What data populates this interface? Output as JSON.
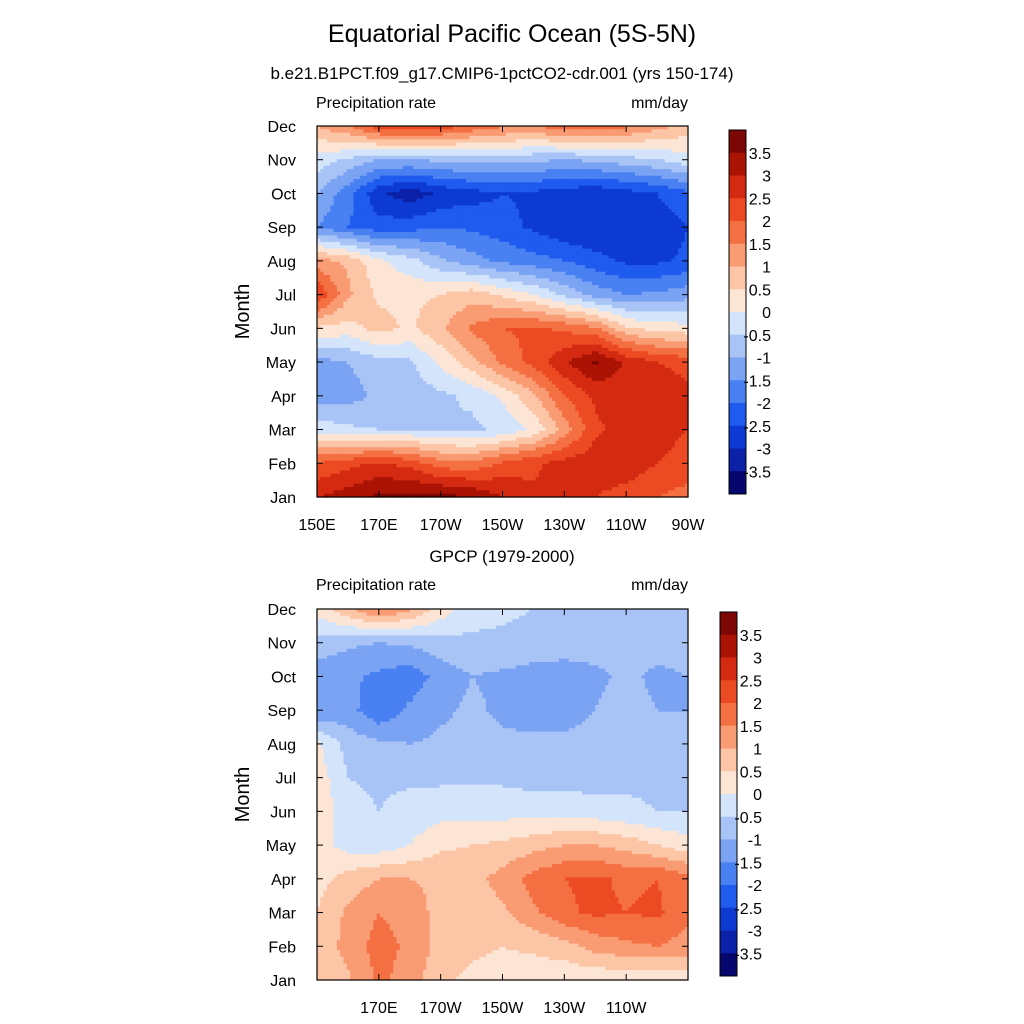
{
  "title": "Equatorial Pacific Ocean (5S-5N)",
  "chart_data": [
    {
      "type": "heatmap",
      "panel_title": "b.e21.B1PCT.f09_g17.CMIP6-1pctCO2-cdr.001 (yrs 150-174)",
      "left_label": "Precipitation rate",
      "right_label": "mm/day",
      "ylabel": "Month",
      "xlabel": "",
      "x_ticks": [
        "150E",
        "170E",
        "170W",
        "150W",
        "130W",
        "110W",
        "90W"
      ],
      "y_ticks": [
        "Jan",
        "Feb",
        "Mar",
        "Apr",
        "May",
        "Jun",
        "Jul",
        "Aug",
        "Sep",
        "Oct",
        "Nov",
        "Dec"
      ],
      "xlim": [
        "150E",
        "90W"
      ],
      "ylim": [
        "Jan",
        "Dec"
      ],
      "colorbar_labels": [
        "3.5",
        "3",
        "2.5",
        "2",
        "1.5",
        "1",
        "0.5",
        "0",
        "-0.5",
        "-1",
        "-1.5",
        "-2",
        "-2.5",
        "-3",
        "-3.5"
      ],
      "grid_columns": [
        "150E",
        "160E",
        "170E",
        "180",
        "170W",
        "160W",
        "150W",
        "140W",
        "130W",
        "120W",
        "110W",
        "100W",
        "90W"
      ],
      "values": [
        [
          3.0,
          3.3,
          3.6,
          3.7,
          3.7,
          3.5,
          3.0,
          2.6,
          2.6,
          2.5,
          2.3,
          2.0,
          1.8
        ],
        [
          2.0,
          2.3,
          2.6,
          2.3,
          1.7,
          1.6,
          2.1,
          2.4,
          2.7,
          2.8,
          2.8,
          2.5,
          2.3
        ],
        [
          -0.2,
          -0.4,
          -0.5,
          -0.5,
          -0.5,
          -0.6,
          -0.4,
          0.1,
          1.2,
          2.4,
          2.7,
          2.7,
          2.5
        ],
        [
          -1.3,
          -1.2,
          -0.9,
          -0.8,
          -0.6,
          -0.4,
          0.1,
          0.9,
          2.0,
          2.6,
          2.8,
          3.0,
          2.6
        ],
        [
          -1.2,
          -1.0,
          -0.7,
          -0.6,
          0.1,
          0.8,
          1.6,
          2.2,
          2.9,
          3.6,
          2.9,
          2.5,
          2.3
        ],
        [
          0.4,
          0.3,
          0.7,
          0.4,
          0.9,
          1.6,
          2.0,
          2.1,
          1.9,
          1.6,
          0.6,
          0.3,
          0.2
        ],
        [
          2.5,
          1.1,
          0.4,
          0.4,
          0.5,
          0.8,
          0.4,
          0.0,
          -0.6,
          -1.2,
          -1.5,
          -1.4,
          -1.2
        ],
        [
          1.2,
          0.9,
          0.1,
          -0.3,
          -0.9,
          -1.3,
          -1.6,
          -1.8,
          -2.0,
          -2.3,
          -2.6,
          -2.6,
          -2.4
        ],
        [
          -1.5,
          -2.0,
          -2.3,
          -2.2,
          -2.0,
          -2.1,
          -2.3,
          -2.6,
          -2.9,
          -3.0,
          -3.0,
          -2.8,
          -2.5
        ],
        [
          -1.0,
          -1.8,
          -2.9,
          -3.3,
          -2.9,
          -2.7,
          -2.5,
          -2.6,
          -2.8,
          -2.9,
          -2.7,
          -2.5,
          -2.1
        ],
        [
          -0.2,
          -0.6,
          -1.0,
          -1.0,
          -0.9,
          -0.8,
          -0.8,
          -0.9,
          -1.0,
          -0.9,
          -0.7,
          -0.5,
          -0.2
        ],
        [
          1.0,
          1.5,
          2.3,
          2.5,
          2.3,
          1.9,
          1.6,
          1.5,
          1.8,
          1.9,
          1.6,
          1.2,
          0.8
        ]
      ]
    },
    {
      "type": "heatmap",
      "panel_title": "GPCP (1979-2000)",
      "left_label": "Precipitation rate",
      "right_label": "mm/day",
      "ylabel": "Month",
      "xlabel": "",
      "x_ticks": [
        "170E",
        "170W",
        "150W",
        "130W",
        "110W"
      ],
      "y_ticks": [
        "Jan",
        "Feb",
        "Mar",
        "Apr",
        "May",
        "Jun",
        "Jul",
        "Aug",
        "Sep",
        "Oct",
        "Nov",
        "Dec"
      ],
      "xlim": [
        "150E",
        "90W"
      ],
      "ylim": [
        "Jan",
        "Dec"
      ],
      "colorbar_labels": [
        "3.5",
        "3",
        "2.5",
        "2",
        "1.5",
        "1",
        "0.5",
        "0",
        "-0.5",
        "-1",
        "-1.5",
        "-2",
        "-2.5",
        "-3",
        "-3.5"
      ],
      "grid_columns": [
        "150E",
        "160E",
        "170E",
        "180",
        "170W",
        "160W",
        "150W",
        "140W",
        "130W",
        "120W",
        "110W",
        "100W",
        "90W"
      ],
      "values": [
        [
          0.5,
          0.9,
          1.6,
          1.3,
          0.6,
          0.4,
          0.3,
          0.2,
          0.1,
          0.1,
          0.1,
          0.1,
          0.2
        ],
        [
          0.6,
          1.2,
          1.7,
          1.4,
          0.8,
          0.6,
          0.5,
          0.6,
          0.8,
          1.2,
          1.4,
          1.5,
          1.3
        ],
        [
          0.5,
          1.1,
          1.5,
          1.3,
          0.8,
          0.7,
          0.9,
          1.4,
          1.9,
          2.1,
          2.0,
          2.1,
          1.6
        ],
        [
          0.3,
          0.7,
          1.0,
          1.0,
          0.9,
          0.8,
          1.2,
          1.7,
          2.0,
          2.1,
          1.9,
          2.0,
          1.7
        ],
        [
          0.2,
          -0.2,
          -0.3,
          0.0,
          0.4,
          0.5,
          0.6,
          0.8,
          1.0,
          1.0,
          0.8,
          0.5,
          0.2
        ],
        [
          0.4,
          -0.3,
          -0.5,
          -0.3,
          -0.2,
          -0.2,
          -0.2,
          -0.2,
          -0.2,
          -0.3,
          -0.4,
          -0.5,
          -0.5
        ],
        [
          0.3,
          -0.5,
          -0.6,
          -0.6,
          -0.6,
          -0.6,
          -0.6,
          -0.7,
          -0.7,
          -0.7,
          -0.6,
          -0.6,
          -0.6
        ],
        [
          0.1,
          -0.7,
          -0.9,
          -1.0,
          -0.9,
          -0.8,
          -0.9,
          -0.9,
          -0.9,
          -0.8,
          -0.7,
          -0.8,
          -0.7
        ],
        [
          -1.5,
          -1.3,
          -1.9,
          -1.4,
          -1.1,
          -0.9,
          -1.1,
          -1.2,
          -1.2,
          -1.0,
          -0.8,
          -1.0,
          -1.0
        ],
        [
          -1.3,
          -1.4,
          -1.6,
          -1.8,
          -1.3,
          -1.0,
          -1.1,
          -1.2,
          -1.2,
          -1.1,
          -0.9,
          -1.1,
          -1.0
        ],
        [
          -0.7,
          -0.9,
          -1.0,
          -0.9,
          -0.7,
          -0.6,
          -0.6,
          -0.7,
          -0.8,
          -0.8,
          -0.8,
          -0.8,
          -0.8
        ],
        [
          0.2,
          0.9,
          1.6,
          1.1,
          0.3,
          -0.3,
          -0.4,
          -0.5,
          -0.6,
          -0.6,
          -0.6,
          -0.7,
          -0.6
        ]
      ]
    }
  ],
  "colors": {
    "palette": [
      "#05066e",
      "#0b21a8",
      "#0d3ad3",
      "#1e5bee",
      "#4980f2",
      "#7aa3f3",
      "#a8c3f6",
      "#d3e4fb",
      "#fde5d6",
      "#fcc6a6",
      "#f99b73",
      "#f47043",
      "#ec4a22",
      "#d42a11",
      "#ab1305",
      "#7d0705"
    ],
    "axis": "#000000"
  }
}
